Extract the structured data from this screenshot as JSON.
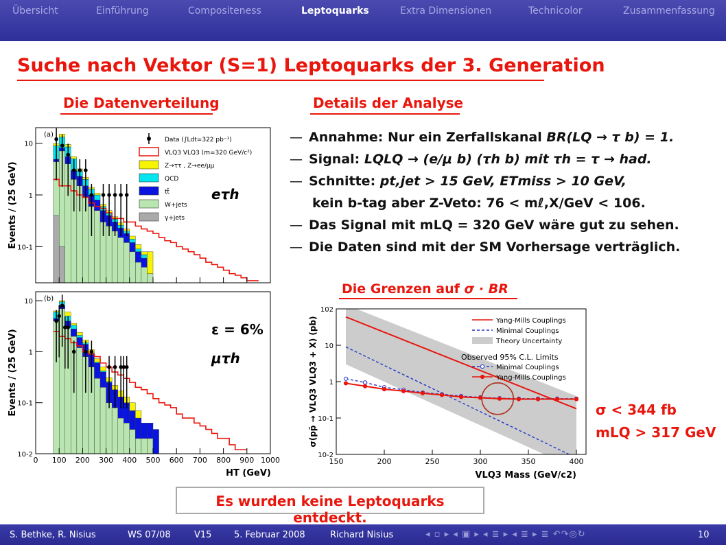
{
  "nav": {
    "tabs": [
      "Übersicht",
      "Einführung",
      "Compositeness",
      "Leptoquarks",
      "Extra Dimensionen",
      "Technicolor",
      "Zusammenfassung"
    ],
    "active_index": 3
  },
  "title": "Suche nach Vektor (S=1) Leptoquarks der 3. Generation",
  "left_heading": "Die Datenverteilung",
  "right_heading": "Details der Analyse",
  "limits_heading_text": "Die Grenzen auf",
  "limits_heading_symbol": "σ · BR",
  "bullets": [
    {
      "pre": "Annahme: Nur ein Zerfallskanal ",
      "math": "BR(LQ → τ b) = 1."
    },
    {
      "pre": "Signal: ",
      "math": "LQLQ → (e/μ b) (τh b) mit τh = τ → had."
    },
    {
      "pre": "Schnitte: ",
      "math": "pt,jet > 15 GeV, ETmiss > 10 GeV,"
    },
    {
      "pre": "kein b-tag aber Z-Veto: ",
      "math": "76 < mℓ,X/GeV < 106."
    },
    {
      "pre": "Das Signal mit ",
      "math": "mLQ = 320 GeV wäre gut zu sehen."
    },
    {
      "pre": "Die Daten sind mit der SM Vorhersage verträglich.",
      "math": ""
    }
  ],
  "results": [
    "σ < 344 fb",
    "mLQ > 317 GeV"
  ],
  "conclusion": "Es wurden keine Leptoquarks entdeckt.",
  "footer": {
    "authors": "S. Bethke, R. Nisius",
    "semester": "WS 07/08",
    "lecture": "V15",
    "date": "5. Februar 2008",
    "speaker": "Richard Nisius",
    "page": "10",
    "nav_icons": "◂ ▫ ▸ ◂ ▣ ▸ ◂ ≣ ▸ ◂ ≣ ▸   ≣   ↶↷◎↻"
  },
  "chart_data": [
    {
      "type": "histogram",
      "panel": "(a)",
      "xlabel": "HT (GeV)",
      "ylabel": "Events / (25 GeV)",
      "ylim": [
        0.02,
        20
      ],
      "xlim": [
        0,
        1000
      ],
      "log_y": true,
      "channel_label": "eτh",
      "y_ticks": [
        "10",
        "1",
        "10-1"
      ],
      "bin_edges": [
        75,
        100,
        125,
        150,
        175,
        200,
        225,
        250,
        275,
        300,
        325,
        350,
        375,
        400,
        425,
        450,
        475,
        500,
        525
      ],
      "stack": [
        {
          "name": "γ+jets",
          "color": "#aaaaaa",
          "values": [
            0.4,
            0.1,
            0,
            0,
            0,
            0,
            0,
            0,
            0,
            0,
            0,
            0,
            0,
            0,
            0,
            0,
            0,
            0
          ]
        },
        {
          "name": "W+jets",
          "color": "#b9e6b0",
          "values": [
            4,
            7,
            4,
            2,
            1.5,
            0.9,
            0.6,
            0.5,
            0.3,
            0.25,
            0.2,
            0.15,
            0.12,
            0.08,
            0.05,
            0.04,
            0.03,
            0.02
          ]
        },
        {
          "name": "tt̄",
          "color": "#0a14e0",
          "values": [
            0.5,
            1,
            1.5,
            1,
            0.8,
            0.6,
            0.4,
            0.3,
            0.2,
            0.15,
            0.1,
            0.08,
            0.06,
            0.04,
            0.03,
            0.02,
            0,
            0
          ]
        },
        {
          "name": "QCD",
          "color": "#00e5ee",
          "values": [
            4,
            5,
            3,
            2,
            0.6,
            0.5,
            0.3,
            0.2,
            0.1,
            0.05,
            0.04,
            0.03,
            0.02,
            0.02,
            0.01,
            0.01,
            0,
            0
          ]
        },
        {
          "name": "Z→ττ, Z→ee/μμ",
          "color": "#f6f400",
          "values": [
            1,
            2,
            1,
            0.5,
            0.3,
            0.2,
            0.1,
            0.08,
            0.06,
            0.05,
            0.04,
            0.03,
            0.02,
            0.02,
            0.02,
            0.01,
            0.05,
            0
          ]
        }
      ],
      "signal": {
        "name": "VLQ3 VLQ3 (m=320 GeV/c²)",
        "color": "#e8160c",
        "x": [
          75,
          100,
          125,
          150,
          175,
          200,
          225,
          250,
          275,
          300,
          325,
          350,
          375,
          400,
          425,
          450,
          475,
          500,
          525,
          550,
          575,
          600,
          625,
          650,
          675,
          700,
          725,
          750,
          775,
          800,
          825,
          850,
          875,
          900,
          925
        ],
        "y": [
          2,
          1.5,
          1.5,
          1.2,
          1,
          0.9,
          0.7,
          0.6,
          0.55,
          0.45,
          0.35,
          0.35,
          0.3,
          0.3,
          0.25,
          0.22,
          0.2,
          0.18,
          0.15,
          0.13,
          0.12,
          0.1,
          0.09,
          0.08,
          0.07,
          0.06,
          0.05,
          0.045,
          0.04,
          0.035,
          0.03,
          0.028,
          0.025,
          0.022,
          0.022
        ]
      },
      "data": {
        "name": "Data (∫Ldt=322 pb⁻¹)",
        "x": [
          88,
          113,
          138,
          163,
          188,
          213,
          238,
          288,
          313,
          338,
          363,
          388
        ],
        "y": [
          12,
          9,
          6,
          3,
          3,
          3,
          1,
          1,
          1,
          1,
          1,
          1
        ]
      },
      "legend": [
        "Data (∫Ldt=322 pb⁻¹)",
        "VLQ3 VLQ3 (m=320 GeV/c²)",
        "Z→ττ , Z→ee/μμ",
        "QCD",
        "tt̄",
        "W+jets",
        "γ+jets"
      ]
    },
    {
      "type": "histogram",
      "panel": "(b)",
      "xlabel": "HT (GeV)",
      "ylabel": "Events / (25 GeV)",
      "ylim": [
        0.01,
        15
      ],
      "xlim": [
        0,
        1000
      ],
      "log_y": true,
      "channel_label": "μτh",
      "efficiency_label": "ε = 6%",
      "y_ticks": [
        "10",
        "1",
        "10-1",
        "10-2"
      ],
      "x_ticks": [
        "0",
        "100",
        "200",
        "300",
        "400",
        "500",
        "600",
        "700",
        "800",
        "900",
        "1000"
      ],
      "bin_edges": [
        75,
        100,
        125,
        150,
        175,
        200,
        225,
        250,
        275,
        300,
        325,
        350,
        375,
        400,
        425,
        450,
        475,
        500,
        525
      ],
      "stack": [
        {
          "name": "W+jets",
          "color": "#b9e6b0",
          "values": [
            4,
            7,
            3,
            2,
            1.2,
            0.8,
            0.5,
            0.3,
            0.2,
            0.1,
            0.08,
            0.05,
            0.04,
            0.03,
            0.02,
            0.02,
            0.02,
            0.01
          ]
        },
        {
          "name": "tt̄",
          "color": "#0a14e0",
          "values": [
            0.5,
            1,
            1,
            0.8,
            0.7,
            0.6,
            0.4,
            0.3,
            0.2,
            0.15,
            0.1,
            0.08,
            0.06,
            0.04,
            0.03,
            0.02,
            0.02,
            0.02
          ]
        },
        {
          "name": "QCD",
          "color": "#00e5ee",
          "values": [
            1.5,
            1.5,
            1,
            0.5,
            0.2,
            0.1,
            0.05,
            0.03,
            0.02,
            0.01,
            0,
            0,
            0,
            0,
            0,
            0,
            0,
            0
          ]
        },
        {
          "name": "Z→ττ, Z→ee/μμ",
          "color": "#f6f400",
          "values": [
            0.3,
            0.5,
            1,
            0.3,
            0.3,
            0.2,
            0.15,
            0.1,
            0.08,
            0.05,
            0.04,
            0.04,
            0.03,
            0.03,
            0.02,
            0,
            0,
            0
          ]
        }
      ],
      "signal": {
        "name": "VLQ3 VLQ3",
        "color": "#e8160c",
        "x": [
          75,
          100,
          125,
          150,
          175,
          200,
          225,
          250,
          275,
          300,
          325,
          350,
          375,
          400,
          425,
          450,
          475,
          500,
          525,
          550,
          575,
          600,
          625,
          650,
          675,
          700,
          725,
          750,
          775,
          800,
          825,
          850,
          875
        ],
        "y": [
          2.5,
          2,
          1.8,
          1.5,
          1.3,
          1,
          0.9,
          0.8,
          0.6,
          0.5,
          0.4,
          0.35,
          0.3,
          0.25,
          0.2,
          0.18,
          0.15,
          0.12,
          0.1,
          0.09,
          0.08,
          0.06,
          0.05,
          0.05,
          0.04,
          0.035,
          0.03,
          0.025,
          0.02,
          0.02,
          0.015,
          0.012,
          0.012
        ]
      },
      "data": {
        "x": [
          88,
          100,
          113,
          125,
          138,
          163,
          213,
          238,
          313,
          338,
          363,
          375,
          388
        ],
        "y": [
          4,
          5,
          8,
          3,
          3,
          1,
          1,
          1,
          0.5,
          0.5,
          0.5,
          0.5,
          0.5
        ]
      }
    },
    {
      "type": "line",
      "xlabel": "VLQ3 Mass (GeV/c2)",
      "ylabel": "σ(pp̄ → VLQ3 VLQ3 + X) (pb)",
      "xlim": [
        150,
        410
      ],
      "ylim": [
        0.01,
        100
      ],
      "log_y": true,
      "x_ticks": [
        "150",
        "200",
        "250",
        "300",
        "350",
        "400"
      ],
      "y_ticks": [
        "10-2",
        "10-1",
        "1",
        "10",
        "102"
      ],
      "legend_title": "Observed 95% C.L. Limits",
      "series": [
        {
          "name": "Yang-Mills Couplings",
          "style": "solid",
          "color": "#e8160c",
          "x": [
            160,
            400
          ],
          "y": [
            60,
            0.18
          ]
        },
        {
          "name": "Minimal Couplings",
          "style": "dashed",
          "color": "#2233cc",
          "x": [
            160,
            400
          ],
          "y": [
            9,
            0.008
          ]
        },
        {
          "name": "Theory Uncertainty",
          "style": "band",
          "color": "#cccccc",
          "x": [
            160,
            400
          ],
          "y_low": [
            3,
            0.004
          ],
          "y_high": [
            130,
            0.4
          ]
        },
        {
          "name": "Minimal Couplings",
          "style": "dashed-open-circles",
          "color": "#2233cc",
          "x": [
            160,
            180,
            200,
            220,
            240,
            260,
            280,
            300,
            320,
            340,
            360,
            380,
            400
          ],
          "y": [
            1.2,
            0.95,
            0.7,
            0.6,
            0.5,
            0.45,
            0.4,
            0.37,
            0.35,
            0.34,
            0.34,
            0.34,
            0.34
          ]
        },
        {
          "name": "Yang-Mills Couplings",
          "style": "solid-filled-circles",
          "color": "#e8160c",
          "x": [
            160,
            180,
            200,
            220,
            240,
            260,
            280,
            300,
            320,
            340,
            360,
            380,
            400
          ],
          "y": [
            0.9,
            0.75,
            0.62,
            0.55,
            0.48,
            0.43,
            0.38,
            0.36,
            0.34,
            0.33,
            0.33,
            0.33,
            0.33
          ]
        }
      ],
      "legend": [
        "Yang-Mills Couplings",
        "Minimal Couplings",
        "Theory Uncertainty",
        "Observed 95% C.L. Limits",
        "Minimal Couplings",
        "Yang-Mills Couplings"
      ],
      "annotation": {
        "type": "circle",
        "center_x": 318,
        "center_y": 0.34
      }
    }
  ]
}
